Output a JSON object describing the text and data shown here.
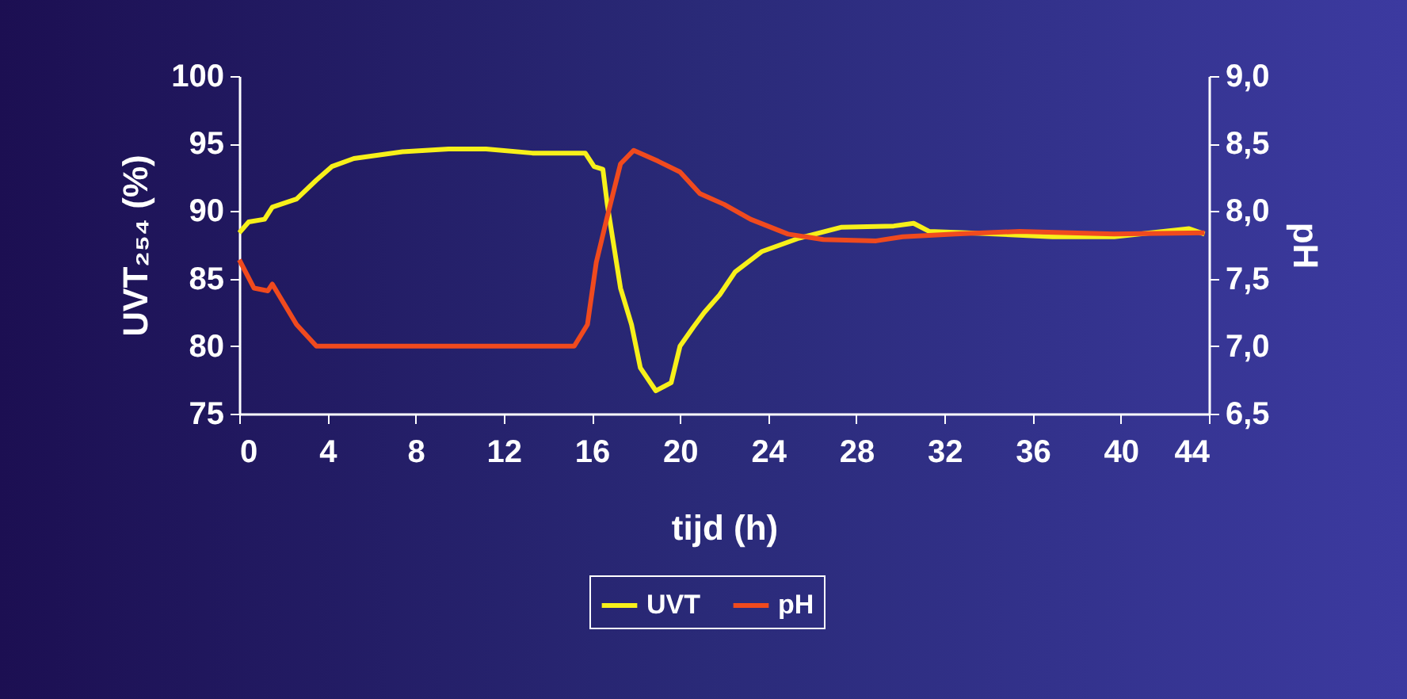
{
  "chart_data": {
    "type": "line",
    "xlabel": "tijd (h)",
    "ylabel": "UVT₂₅₄ (%)",
    "y2label": "pH",
    "xlim": [
      0,
      44
    ],
    "xticks": [
      0,
      4,
      8,
      12,
      16,
      20,
      24,
      28,
      32,
      36,
      40,
      44
    ],
    "ylim": [
      75,
      100
    ],
    "yticks": [
      75,
      80,
      85,
      90,
      95,
      100
    ],
    "y2lim": [
      6.5,
      9
    ],
    "y2ticks": [
      {
        "value": 6.5,
        "label": "6,5"
      },
      {
        "value": 7,
        "label": "7,0"
      },
      {
        "value": 7.5,
        "label": "7,5"
      },
      {
        "value": 8,
        "label": "8,0"
      },
      {
        "value": 8.5,
        "label": "8,5"
      },
      {
        "value": 9,
        "label": "9,0"
      }
    ],
    "grid": false,
    "legend": "bottom",
    "line_style": "solid",
    "marker": "none",
    "series": [
      {
        "name": "UVT",
        "color": "#f7f01a",
        "x": [
          0,
          0.43,
          1.15,
          1.5,
          2.6,
          3.5,
          4.2,
          5.2,
          7.4,
          9.5,
          11.2,
          13.3,
          15.7,
          16.1,
          16.5,
          16.7,
          17.3,
          17.8,
          18.2,
          18.9,
          19.6,
          20.0,
          20.6,
          21.1,
          21.8,
          22.5,
          23.7,
          25.4,
          27.3,
          29.7,
          30.6,
          31.3,
          33,
          36.9,
          39.7,
          43.1,
          43.8
        ],
        "values": [
          88.4,
          89.2,
          89.4,
          90.3,
          90.9,
          92.3,
          93.3,
          93.9,
          94.4,
          94.6,
          94.6,
          94.3,
          94.3,
          93.3,
          93.1,
          90.5,
          84.3,
          81.6,
          78.4,
          76.7,
          77.3,
          80.0,
          81.4,
          82.5,
          83.8,
          85.5,
          87.0,
          88.0,
          88.8,
          88.9,
          89.1,
          88.5,
          88.4,
          88.1,
          88.1,
          88.7,
          88.3
        ]
      },
      {
        "name": "pH",
        "color": "#f04a1e",
        "axis": "y2",
        "x": [
          0,
          0.67,
          1.3,
          1.5,
          2.6,
          3.5,
          15.2,
          15.8,
          16.2,
          16.7,
          17.3,
          17.9,
          19.0,
          20.0,
          20.9,
          22.0,
          23.2,
          24.9,
          26.5,
          28.9,
          30.1,
          32.5,
          35.4,
          39.7,
          43.8
        ],
        "values": [
          7.64,
          7.43,
          7.41,
          7.46,
          7.16,
          7.0,
          7.0,
          7.16,
          7.62,
          7.96,
          8.35,
          8.45,
          8.37,
          8.29,
          8.13,
          8.05,
          7.94,
          7.83,
          7.79,
          7.78,
          7.81,
          7.83,
          7.85,
          7.83,
          7.84
        ]
      }
    ]
  }
}
